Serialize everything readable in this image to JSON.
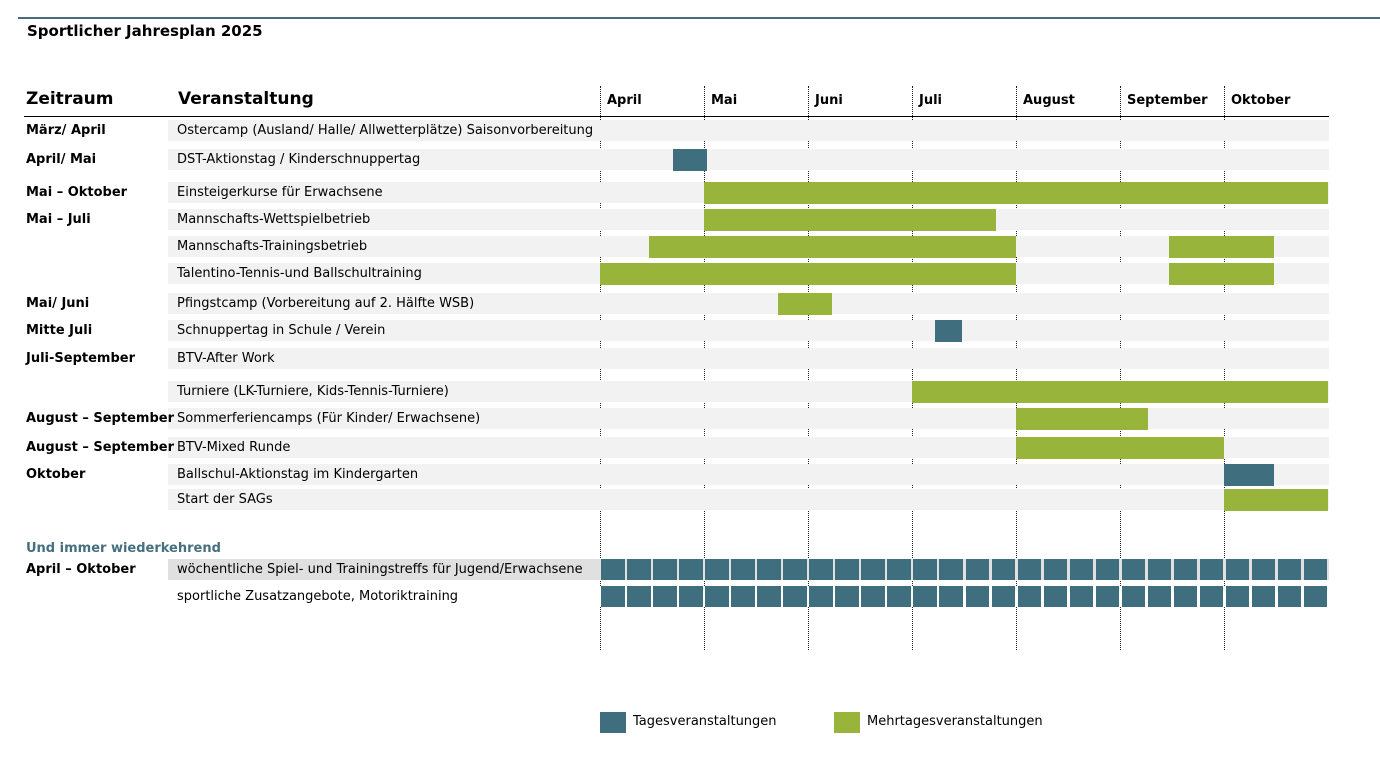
{
  "colors": {
    "tages": "#3f6f7f",
    "mehrtages": "#98b43a",
    "row_background": "#f2f2f2",
    "recurring_heading": "#46707f"
  },
  "title": "Sportlicher Jahresplan 2025",
  "headers": {
    "zeitraum": "Zeitraum",
    "veranstaltung": "Veranstaltung"
  },
  "legend": {
    "tages": "Tagesveranstaltungen",
    "mehrtages": "Mehrtagesveranstaltungen"
  },
  "recurring_heading": "Und immer wiederkehrend",
  "chart_data": {
    "type": "gantt",
    "x_axis": {
      "months": [
        "April",
        "Mai",
        "Juni",
        "Juli",
        "August",
        "September",
        "Oktober"
      ],
      "range": [
        "2025-04-01",
        "2025-10-31"
      ]
    },
    "legend_placement": "bottom",
    "rows": [
      {
        "zeitraum": "März/ April",
        "event": "Ostercamp (Ausland/ Halle/ Allwetterplätze) Saisonvorbereitung",
        "bars": []
      },
      {
        "zeitraum": "April/ Mai",
        "event": "DST-Aktionstag / Kinderschnuppertag",
        "bars": [
          {
            "start": "2025-04-22",
            "end": "2025-05-01",
            "type": "tages"
          }
        ]
      },
      {
        "zeitraum": "Mai – Oktober",
        "event": "Einsteigerkurse für Erwachsene",
        "bars": [
          {
            "start": "2025-05-01",
            "end": "2025-10-31",
            "type": "mehrtages"
          }
        ]
      },
      {
        "zeitraum": "Mai – Juli",
        "event": "Mannschafts-Wettspielbetrieb",
        "bars": [
          {
            "start": "2025-05-01",
            "end": "2025-07-25",
            "type": "mehrtages"
          }
        ]
      },
      {
        "zeitraum": "",
        "event": "Mannschafts-Trainingsbetrieb",
        "bars": [
          {
            "start": "2025-04-15",
            "end": "2025-07-31",
            "type": "mehrtages"
          },
          {
            "start": "2025-09-15",
            "end": "2025-10-15",
            "type": "mehrtages"
          }
        ]
      },
      {
        "zeitraum": "",
        "event": "Talentino-Tennis-und Ballschultraining",
        "bars": [
          {
            "start": "2025-04-01",
            "end": "2025-07-31",
            "type": "mehrtages"
          },
          {
            "start": "2025-09-15",
            "end": "2025-10-15",
            "type": "mehrtages"
          }
        ]
      },
      {
        "zeitraum": "Mai/ Juni",
        "event": "Pfingstcamp (Vorbereitung auf 2. Hälfte WSB)",
        "bars": [
          {
            "start": "2025-05-23",
            "end": "2025-06-07",
            "type": "mehrtages"
          }
        ]
      },
      {
        "zeitraum": "Mitte Juli",
        "event": "Schnuppertag in Schule / Verein",
        "bars": [
          {
            "start": "2025-07-08",
            "end": "2025-07-15",
            "type": "tages"
          }
        ]
      },
      {
        "zeitraum": "Juli-September",
        "event": "BTV-After Work",
        "bars": []
      },
      {
        "zeitraum": "",
        "event": "Turniere (LK-Turniere, Kids-Tennis-Turniere)",
        "bars": [
          {
            "start": "2025-07-01",
            "end": "2025-10-31",
            "type": "mehrtages"
          }
        ]
      },
      {
        "zeitraum": "August – September",
        "event": "Sommerferiencamps (Für Kinder/ Erwachsene)",
        "bars": [
          {
            "start": "2025-08-01",
            "end": "2025-09-08",
            "type": "mehrtages"
          }
        ]
      },
      {
        "zeitraum": "August – September",
        "event": "BTV-Mixed Runde",
        "bars": [
          {
            "start": "2025-08-01",
            "end": "2025-09-30",
            "type": "mehrtages"
          }
        ]
      },
      {
        "zeitraum": "Oktober",
        "event": "Ballschul-Aktionstag im Kindergarten",
        "bars": [
          {
            "start": "2025-10-01",
            "end": "2025-10-15",
            "type": "tages"
          }
        ]
      },
      {
        "zeitraum": "",
        "event": "Start der SAGs",
        "bars": [
          {
            "start": "2025-10-01",
            "end": "2025-10-31",
            "type": "mehrtages"
          }
        ]
      }
    ],
    "recurring": {
      "heading": "Und immer wiederkehrend",
      "rows": [
        {
          "zeitraum": "April – Oktober",
          "event": "wöchentliche Spiel- und Trainingstreffs für Jugend/Erwachsene",
          "type": "tages",
          "frequency": "wöchentlich"
        },
        {
          "zeitraum": "",
          "event": "sportliche Zusatzangebote, Motoriktraining",
          "type": "tages",
          "frequency": "wöchentlich"
        }
      ]
    }
  }
}
